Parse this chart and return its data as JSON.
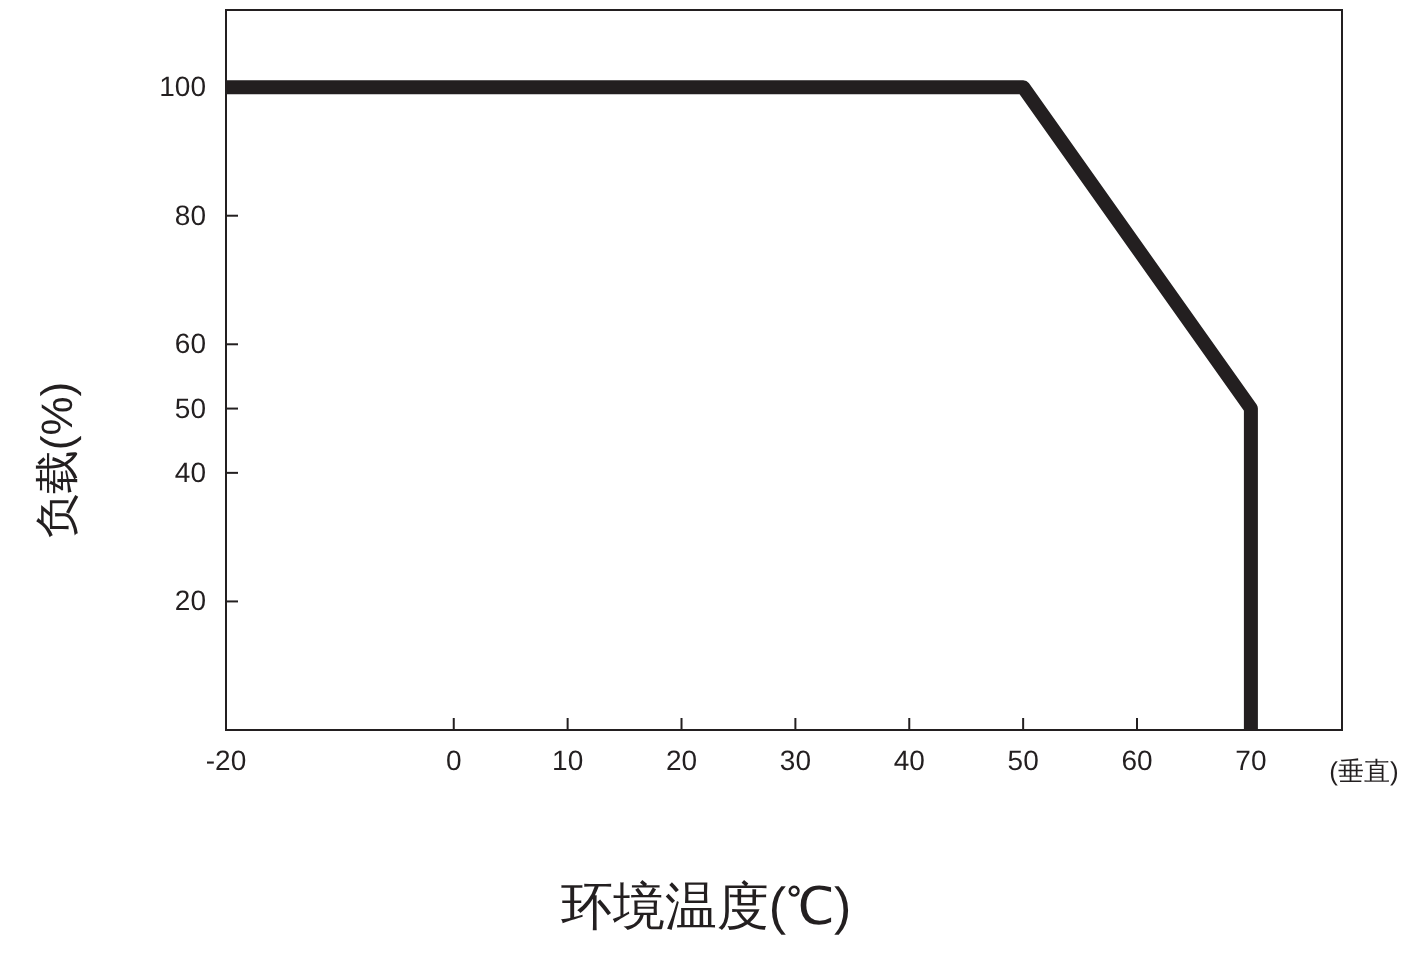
{
  "chart_data": {
    "type": "line",
    "xlabel": "环境温度(℃)",
    "ylabel": "负载(%)",
    "annotations": [
      "(垂直)"
    ],
    "x": [
      -20,
      50,
      70,
      70
    ],
    "series": [
      {
        "color": "#231f20",
        "values": [
          100,
          100,
          50,
          0
        ]
      }
    ],
    "xlim": [
      -20,
      78
    ],
    "xticks": [
      -20,
      0,
      10,
      20,
      30,
      40,
      50,
      60,
      70
    ],
    "ylim": [
      0,
      112
    ],
    "yticks": [
      20,
      40,
      50,
      60,
      80,
      100
    ],
    "grid": false,
    "marker": "none",
    "line_style": "solid"
  }
}
